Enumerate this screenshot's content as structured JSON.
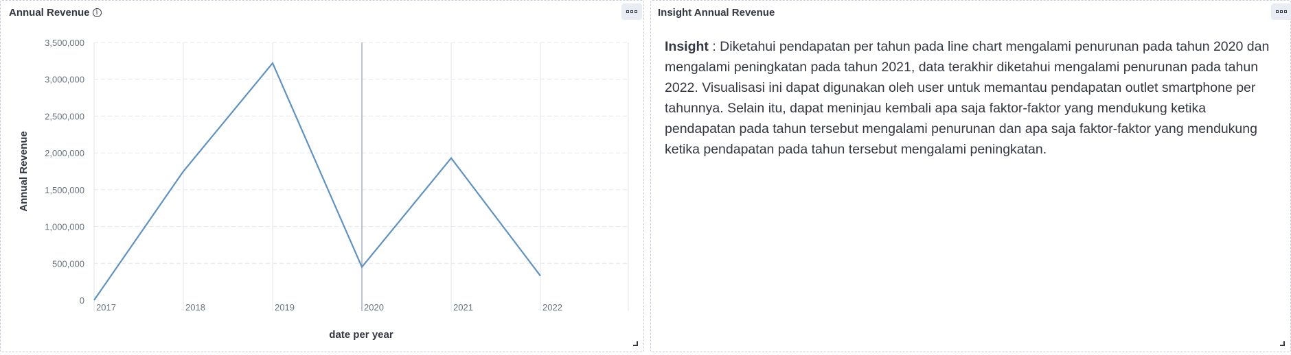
{
  "left_panel": {
    "title": "Annual Revenue",
    "info_icon": "info-icon",
    "options_icon": "options-menu-icon"
  },
  "right_panel": {
    "title": "Insight Annual Revenue",
    "options_icon": "options-menu-icon",
    "insight_label": "Insight",
    "insight_body": " : Diketahui pendapatan per tahun pada line chart mengalami penurunan pada tahun 2020 dan mengalami peningkatan pada tahun 2021, data terakhir diketahui mengalami penurunan pada tahun 2022. Visualisasi ini dapat digunakan oleh user untuk memantau pendapatan outlet smartphone per tahunnya. Selain itu, dapat meninjau kembali apa saja faktor-faktor yang mendukung ketika pendapatan pada tahun tersebut mengalami penurunan dan apa saja faktor-faktor yang mendukung ketika pendapatan pada tahun tersebut mengalami peningkatan."
  },
  "chart_data": {
    "type": "line",
    "title": "Annual Revenue",
    "xlabel": "date per year",
    "ylabel": "Annual Revenue",
    "x": [
      "2017",
      "2018",
      "2019",
      "2020",
      "2021",
      "2022"
    ],
    "series": [
      {
        "values": [
          0,
          1750000,
          3220000,
          450000,
          1930000,
          330000
        ]
      }
    ],
    "ylim": [
      0,
      3500000
    ],
    "yticks": [
      0,
      500000,
      1000000,
      1500000,
      2000000,
      2500000,
      3000000,
      3500000
    ],
    "ytick_labels": [
      "0",
      "500,000",
      "1,000,000",
      "1,500,000",
      "2,000,000",
      "2,500,000",
      "3,000,000",
      "3,500,000"
    ],
    "grid": true,
    "line_color": "#6092c0",
    "gridline_color": "#e4e7ec",
    "highlight_year": "2020"
  }
}
